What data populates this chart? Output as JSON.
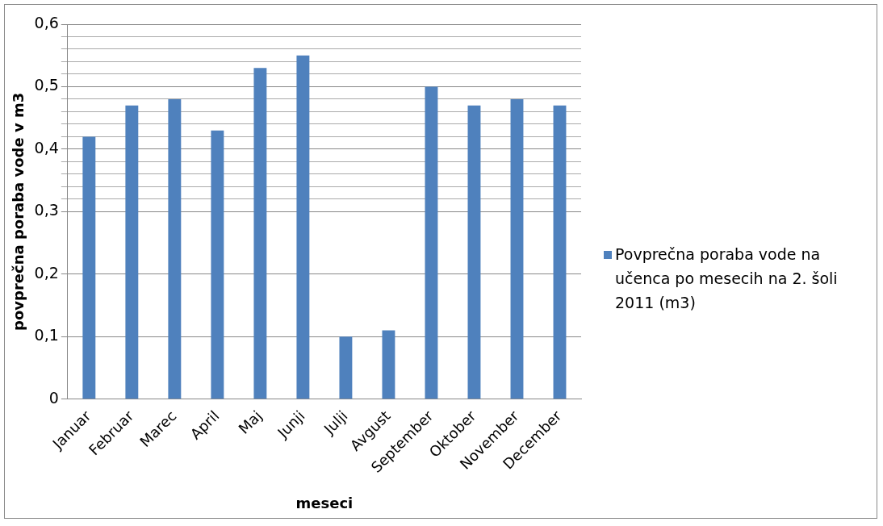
{
  "chart_data": {
    "type": "bar",
    "xlabel": "meseci",
    "ylabel": "povprečna poraba vode v m3",
    "categories": [
      "Januar",
      "Februar",
      "Marec",
      "April",
      "Maj",
      "Junji",
      "Julji",
      "Avgust",
      "September",
      "Oktober",
      "November",
      "December"
    ],
    "series": [
      {
        "name": "Povprečna poraba vode na učenca po mesecih na 2. šoli 2011 (m3)",
        "color": "#4f81bd",
        "values": [
          0.42,
          0.47,
          0.48,
          0.43,
          0.53,
          0.55,
          0.1,
          0.11,
          0.5,
          0.47,
          0.48,
          0.47
        ]
      }
    ],
    "ylim": [
      0,
      0.6
    ],
    "yticks": [
      {
        "value": 0,
        "label": "0"
      },
      {
        "value": 0.1,
        "label": "0,1"
      },
      {
        "value": 0.2,
        "label": "0,2"
      },
      {
        "value": 0.3,
        "label": "0,3"
      },
      {
        "value": 0.32,
        "label": null
      },
      {
        "value": 0.34,
        "label": null
      },
      {
        "value": 0.36,
        "label": null
      },
      {
        "value": 0.38,
        "label": null
      },
      {
        "value": 0.4,
        "label": "0,4"
      },
      {
        "value": 0.42,
        "label": null
      },
      {
        "value": 0.44,
        "label": null
      },
      {
        "value": 0.46,
        "label": null
      },
      {
        "value": 0.48,
        "label": null
      },
      {
        "value": 0.5,
        "label": "0,5"
      },
      {
        "value": 0.52,
        "label": null
      },
      {
        "value": 0.54,
        "label": null
      },
      {
        "value": 0.56,
        "label": null
      },
      {
        "value": 0.58,
        "label": null
      },
      {
        "value": 0.6,
        "label": "0,6"
      }
    ],
    "grid": "y",
    "legend": "right"
  }
}
